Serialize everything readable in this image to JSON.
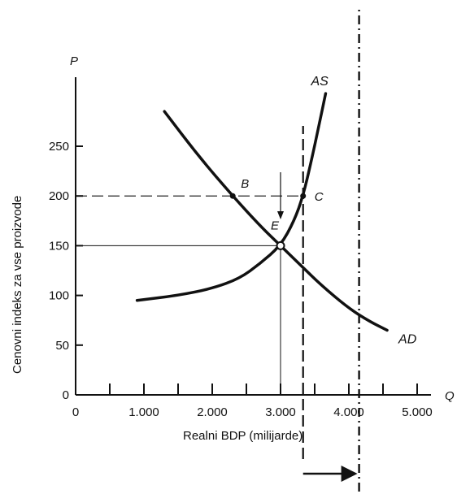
{
  "chart_data": {
    "type": "line",
    "xlabel": "Realni  BDP (milijarde)",
    "ylabel": "Cenovni indeks za vse proizvode",
    "x_axis_symbol": "Q",
    "y_axis_symbol": "P",
    "xlim": [
      0,
      5000
    ],
    "ylim": [
      0,
      300
    ],
    "x_ticks": [
      {
        "value": 0,
        "label": "0"
      },
      {
        "value": 1000,
        "label": "1.000"
      },
      {
        "value": 2000,
        "label": "2.000"
      },
      {
        "value": 3000,
        "label": "3.000"
      },
      {
        "value": 4000,
        "label": "4.000"
      },
      {
        "value": 5000,
        "label": "5.000"
      }
    ],
    "x_minor_ticks": [
      500,
      1500,
      2500,
      3500,
      4500
    ],
    "y_ticks": [
      {
        "value": 0,
        "label": "0"
      },
      {
        "value": 50,
        "label": "50"
      },
      {
        "value": 100,
        "label": "100"
      },
      {
        "value": 150,
        "label": "150"
      },
      {
        "value": 200,
        "label": "200"
      },
      {
        "value": 250,
        "label": "250"
      }
    ],
    "series": [
      {
        "name": "AS",
        "values": [
          [
            900,
            95
          ],
          [
            1500,
            100
          ],
          [
            2000,
            107
          ],
          [
            2400,
            117
          ],
          [
            2700,
            132
          ],
          [
            3000,
            150
          ],
          [
            3200,
            175
          ],
          [
            3330,
            200
          ],
          [
            3450,
            235
          ],
          [
            3560,
            270
          ],
          [
            3660,
            303
          ]
        ]
      },
      {
        "name": "AD",
        "values": [
          [
            1300,
            285
          ],
          [
            1800,
            240
          ],
          [
            2300,
            200
          ],
          [
            2700,
            170
          ],
          [
            3000,
            150
          ],
          [
            3300,
            130
          ],
          [
            3600,
            110
          ],
          [
            4000,
            87
          ],
          [
            4300,
            74
          ],
          [
            4560,
            65
          ]
        ]
      }
    ],
    "points": [
      {
        "label": "B",
        "x": 2300,
        "y": 200
      },
      {
        "label": "C",
        "x": 3330,
        "y": 200
      },
      {
        "label": "E",
        "x": 3000,
        "y": 150
      }
    ],
    "reference_lines": [
      {
        "style": "dashed",
        "orientation": "horizontal",
        "y": 200,
        "x_from": 0,
        "x_to": 3330
      },
      {
        "style": "solid",
        "orientation": "horizontal",
        "y": 150,
        "x_from": 0,
        "x_to": 3000
      },
      {
        "style": "solid",
        "orientation": "vertical",
        "x": 3000,
        "y_from": 0,
        "y_to": 150
      },
      {
        "style": "dashed",
        "orientation": "vertical",
        "x": 3330
      },
      {
        "style": "dash-dot",
        "orientation": "vertical",
        "x": 4150
      }
    ],
    "arrows": [
      {
        "direction": "down",
        "x": 3000,
        "y_from": 200,
        "y_to": 175
      },
      {
        "direction": "right",
        "x_from": 3330,
        "x_to": 4150
      }
    ],
    "grid": false,
    "legend": "none"
  }
}
